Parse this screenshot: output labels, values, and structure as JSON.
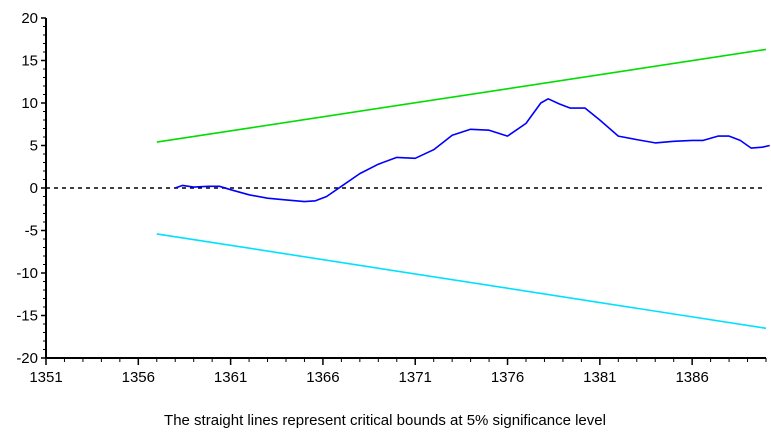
{
  "chart_data": {
    "type": "line",
    "caption": "The straight lines represent critical bounds at 5% significance level",
    "xlim": [
      1351,
      1390
    ],
    "ylim": [
      -20,
      20
    ],
    "x_ticks": [
      1351,
      1356,
      1361,
      1366,
      1371,
      1376,
      1381,
      1386
    ],
    "y_ticks": [
      20,
      15,
      10,
      5,
      0,
      -5,
      -10,
      -15,
      -20
    ],
    "grid": false,
    "legend": "none",
    "reference_line": {
      "y": 0,
      "style": "dashed",
      "color": "#000000"
    },
    "series": [
      {
        "color": "#0000ff",
        "x": [
          1358.0,
          1358.4,
          1359,
          1359.8,
          1360.4,
          1361,
          1362,
          1363,
          1364,
          1365,
          1365.6,
          1366.2,
          1367,
          1368,
          1369,
          1370,
          1371,
          1372,
          1373,
          1374,
          1375,
          1376,
          1377,
          1377.8,
          1378.2,
          1378.8,
          1379.4,
          1380.2,
          1381,
          1382,
          1383,
          1384,
          1385,
          1386,
          1386.6,
          1387.4,
          1388,
          1388.6,
          1389.2,
          1389.8,
          1390.2
        ],
        "y": [
          0,
          0.3,
          0.1,
          0.2,
          0.2,
          -0.2,
          -0.8,
          -1.2,
          -1.4,
          -1.6,
          -1.5,
          -1.0,
          0.2,
          1.7,
          2.8,
          3.6,
          3.5,
          4.5,
          6.2,
          6.9,
          6.8,
          6.1,
          7.6,
          10.0,
          10.5,
          9.9,
          9.4,
          9.4,
          8.0,
          6.1,
          5.7,
          5.3,
          5.5,
          5.6,
          5.6,
          6.1,
          6.1,
          5.6,
          4.7,
          4.8,
          5.0
        ]
      },
      {
        "color": "#00dd00",
        "x": [
          1357,
          1390
        ],
        "y": [
          5.4,
          16.3
        ]
      },
      {
        "color": "#00e0ff",
        "x": [
          1357,
          1390
        ],
        "y": [
          -5.4,
          -16.5
        ]
      }
    ]
  }
}
